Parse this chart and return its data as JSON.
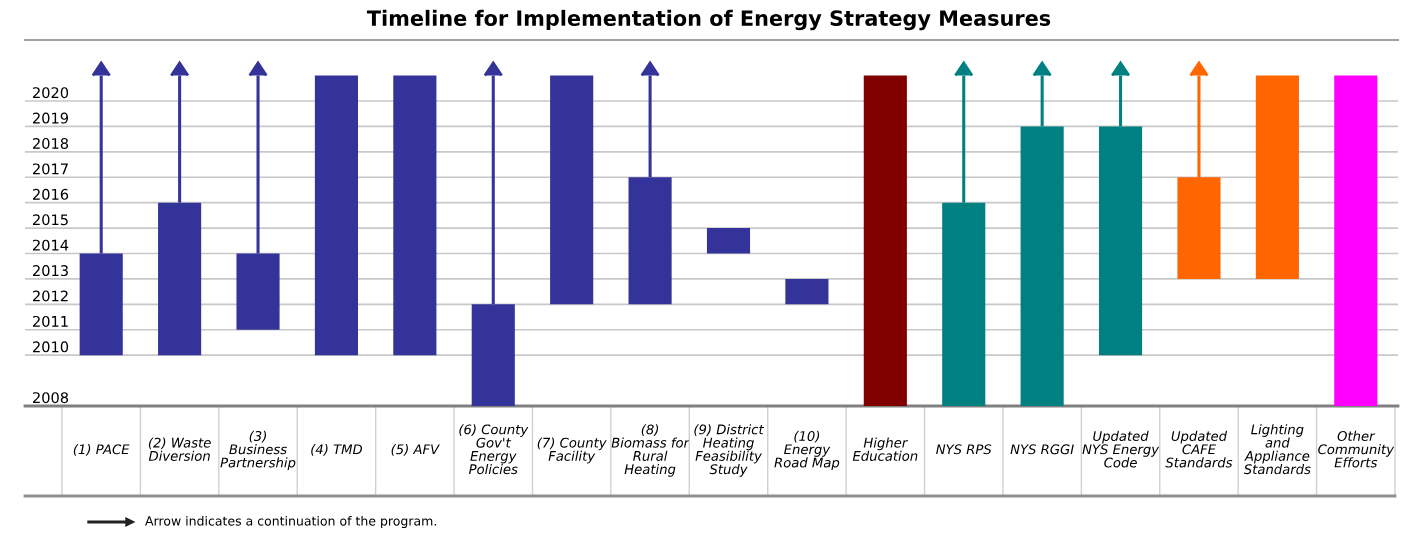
{
  "chart_data": {
    "type": "bar",
    "title": "Timeline for Implementation of Energy Strategy Measures",
    "categories": [
      "(1) PACE",
      "(2) Waste\nDiversion",
      "(3)\nBusiness\nPartnership",
      "(4) TMD",
      "(5) AFV",
      "(6) County\nGov't\nEnergy\nPolicies",
      "(7) County\nFacility",
      "(8)\nBiomass for\nRural\nHeating",
      "(9) District\nHeating\nFeasibility\nStudy",
      "(10)\nEnergy\nRoad Map",
      "Higher\nEducation",
      "NYS RPS",
      "NYS RGGI",
      "Updated\nNYS Energy\nCode",
      "Updated\nCAFE\nStandards",
      "Lighting\nand\nAppliance\nStandards",
      "Other\nCommunity\nEfforts"
    ],
    "base": [
      2010,
      2010,
      2011,
      2010,
      2010,
      2008,
      2012,
      2012,
      2014,
      2012,
      2008,
      2008,
      2008,
      2010,
      2013,
      2013,
      2008
    ],
    "values": [
      4,
      6,
      3,
      11,
      11,
      4,
      9,
      5,
      1,
      1,
      13,
      8,
      11,
      9,
      4,
      8,
      13
    ],
    "colors": [
      "#333399",
      "#333399",
      "#333399",
      "#333399",
      "#333399",
      "#333399",
      "#333399",
      "#333399",
      "#333399",
      "#333399",
      "#800000",
      "#008080",
      "#008080",
      "#008080",
      "#ff6600",
      "#ff6600",
      "#ff00ff"
    ],
    "errors": [
      [
        2014,
        2021
      ],
      [
        2016,
        2021
      ],
      [
        2014,
        2021
      ],
      null,
      null,
      [
        2012,
        2021
      ],
      null,
      [
        2017,
        2021
      ],
      null,
      null,
      null,
      [
        2016,
        2021
      ],
      [
        2019,
        2021
      ],
      [
        2019,
        2021
      ],
      [
        2017,
        2021
      ],
      null,
      null
    ],
    "ylim": [
      2008,
      2022.4
    ],
    "yticks": [
      2008,
      2010,
      2011,
      2012,
      2013,
      2014,
      2015,
      2016,
      2017,
      2018,
      2019,
      2020
    ],
    "grid": "y",
    "annotations": [
      "Arrow indicates a continuation of the program."
    ]
  }
}
